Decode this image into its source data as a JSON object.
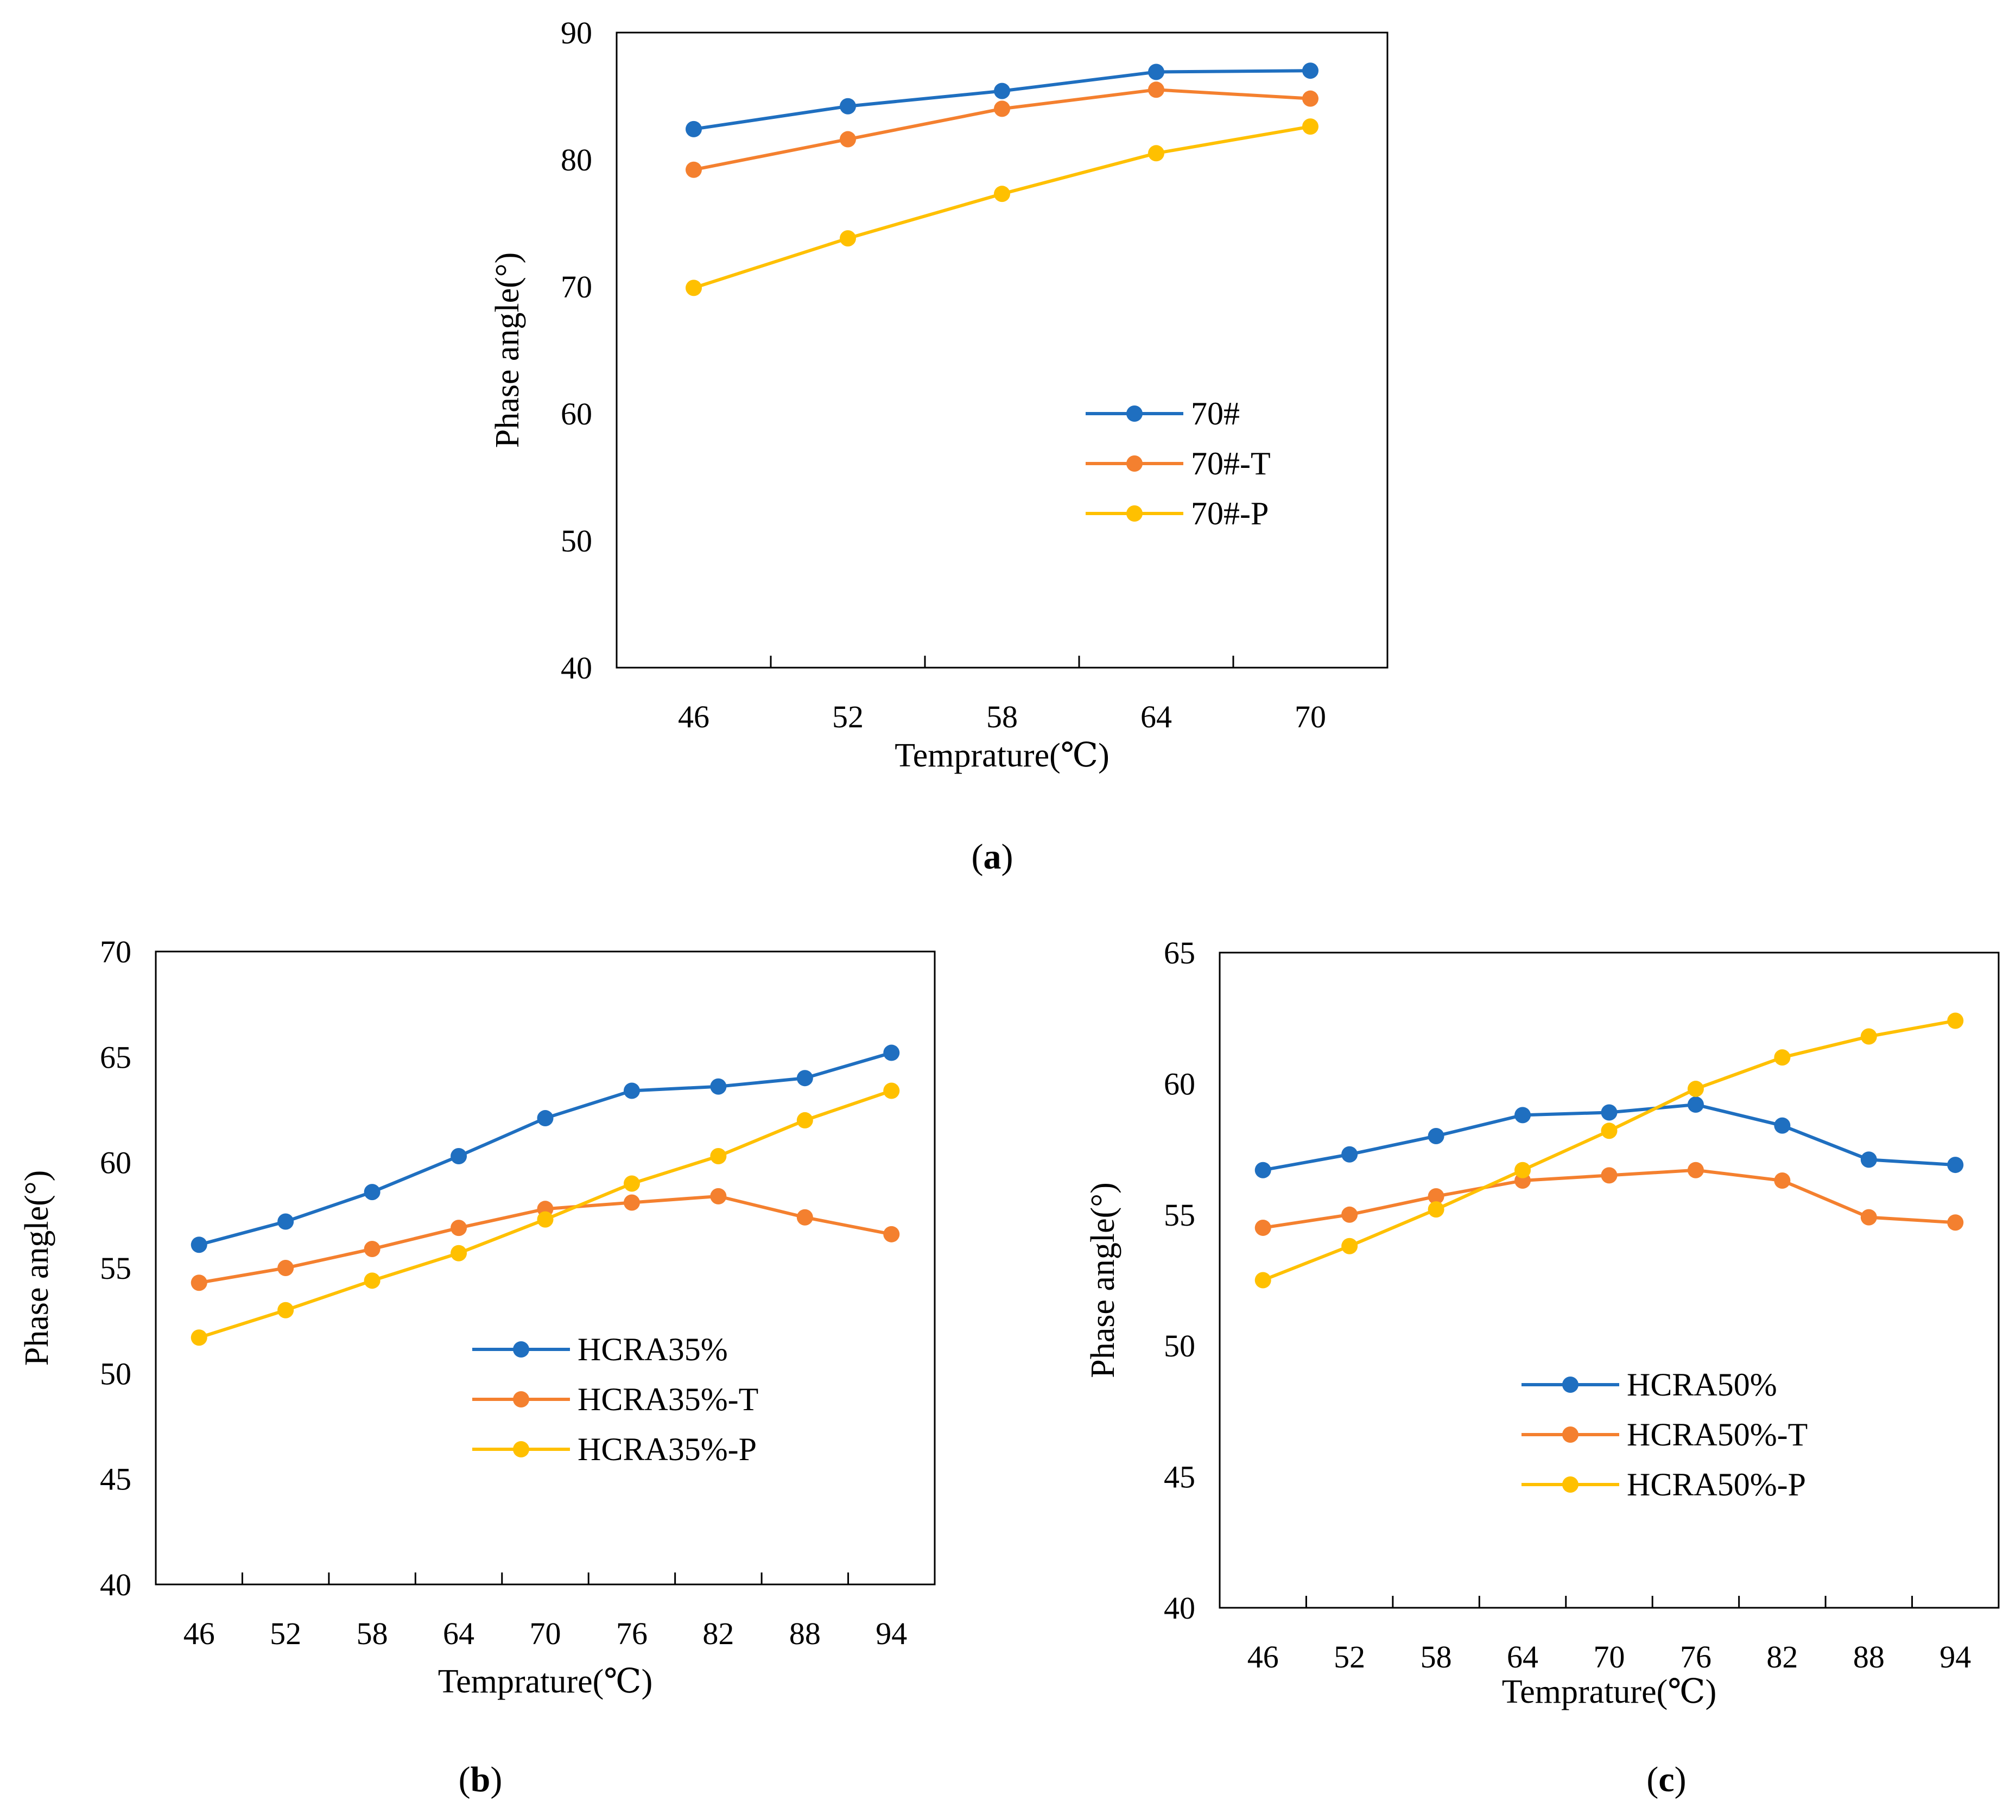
{
  "chart_data": [
    {
      "panel_label": "(a)",
      "type": "line",
      "title": "",
      "xlabel": "Temprature(℃)",
      "ylabel": "Phase angle(°)",
      "categories": [
        "46",
        "52",
        "58",
        "64",
        "70"
      ],
      "ylim": [
        40,
        90
      ],
      "yticks": [
        40,
        50,
        60,
        70,
        80,
        90
      ],
      "legend_position": "center-right",
      "series": [
        {
          "name": "70#",
          "color": "#1F6FC0",
          "values": [
            82.4,
            84.2,
            85.4,
            86.9,
            87.0
          ]
        },
        {
          "name": "70#-T",
          "color": "#F4802F",
          "values": [
            79.2,
            81.6,
            84.0,
            85.5,
            84.8
          ]
        },
        {
          "name": "70#-P",
          "color": "#FFC000",
          "values": [
            69.9,
            73.8,
            77.3,
            80.5,
            82.6
          ]
        }
      ]
    },
    {
      "panel_label": "(b)",
      "type": "line",
      "title": "",
      "xlabel": "Temprature(℃)",
      "ylabel": "Phase angle(°)",
      "categories": [
        "46",
        "52",
        "58",
        "64",
        "70",
        "76",
        "82",
        "88",
        "94"
      ],
      "ylim": [
        40,
        70
      ],
      "yticks": [
        40,
        45,
        50,
        55,
        60,
        65,
        70
      ],
      "legend_position": "center-right",
      "series": [
        {
          "name": "HCRA35%",
          "color": "#1F6FC0",
          "values": [
            56.1,
            57.2,
            58.6,
            60.3,
            62.1,
            63.4,
            63.6,
            64.0,
            65.2
          ]
        },
        {
          "name": "HCRA35%-T",
          "color": "#F4802F",
          "values": [
            54.3,
            55.0,
            55.9,
            56.9,
            57.8,
            58.1,
            58.4,
            57.4,
            56.6
          ]
        },
        {
          "name": "HCRA35%-P",
          "color": "#FFC000",
          "values": [
            51.7,
            53.0,
            54.4,
            55.7,
            57.3,
            59.0,
            60.3,
            62.0,
            63.4
          ]
        }
      ]
    },
    {
      "panel_label": "(c)",
      "type": "line",
      "title": "",
      "xlabel": "Temprature(℃)",
      "ylabel": "Phase angle(°)",
      "categories": [
        "46",
        "52",
        "58",
        "64",
        "70",
        "76",
        "82",
        "88",
        "94"
      ],
      "ylim": [
        40,
        65
      ],
      "yticks": [
        40,
        45,
        50,
        55,
        60,
        65
      ],
      "legend_position": "center-right",
      "series": [
        {
          "name": "HCRA50%",
          "color": "#1F6FC0",
          "values": [
            56.7,
            57.3,
            58.0,
            58.8,
            58.9,
            59.2,
            58.4,
            57.1,
            56.9
          ]
        },
        {
          "name": "HCRA50%-T",
          "color": "#F4802F",
          "values": [
            54.5,
            55.0,
            55.7,
            56.3,
            56.5,
            56.7,
            56.3,
            54.9,
            54.7
          ]
        },
        {
          "name": "HCRA50%-P",
          "color": "#FFC000",
          "values": [
            52.5,
            53.8,
            55.2,
            56.7,
            58.2,
            59.8,
            61.0,
            61.8,
            62.4
          ]
        }
      ]
    }
  ]
}
